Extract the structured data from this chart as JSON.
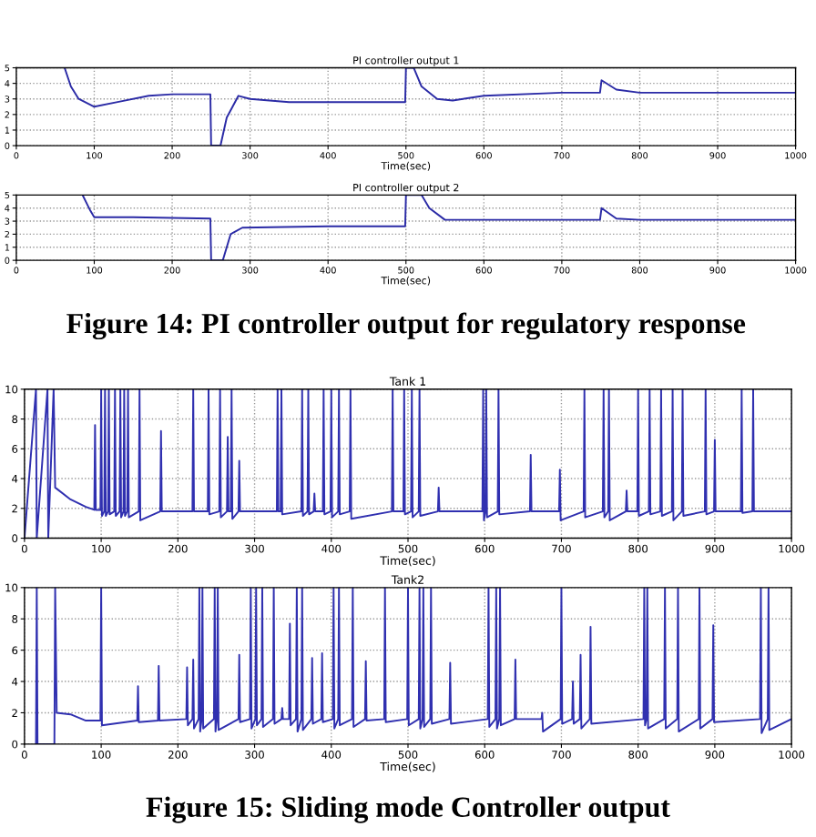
{
  "chart_data": [
    {
      "type": "line",
      "title": "PI controller output 1",
      "xlabel": "Time(sec)",
      "xlim": [
        0,
        1000
      ],
      "ylim": [
        0,
        5
      ],
      "xticks": [
        0,
        100,
        200,
        300,
        400,
        500,
        600,
        700,
        800,
        900,
        1000
      ],
      "yticks": [
        0,
        1,
        2,
        3,
        4,
        5
      ],
      "grid": true,
      "series": [
        {
          "color": "#2b2ba6",
          "x": [
            62,
            70,
            80,
            100,
            130,
            170,
            200,
            249,
            250,
            258,
            262,
            270,
            285,
            300,
            350,
            499,
            500,
            510,
            520,
            540,
            560,
            600,
            700,
            749,
            751,
            770,
            800,
            1000
          ],
          "values": [
            5,
            3.8,
            3.0,
            2.5,
            2.8,
            3.2,
            3.3,
            3.3,
            0,
            0,
            0,
            1.8,
            3.2,
            3.0,
            2.8,
            2.8,
            5,
            5,
            3.8,
            3.0,
            2.9,
            3.2,
            3.4,
            3.4,
            4.2,
            3.6,
            3.4,
            3.4
          ]
        }
      ]
    },
    {
      "type": "line",
      "title": "PI controller output 2",
      "xlabel": "Time(sec)",
      "xlim": [
        0,
        1000
      ],
      "ylim": [
        0,
        5
      ],
      "xticks": [
        0,
        100,
        200,
        300,
        400,
        500,
        600,
        700,
        800,
        900,
        1000
      ],
      "yticks": [
        0,
        1,
        2,
        3,
        4,
        5
      ],
      "grid": true,
      "annotations": [
        "Figure 14: PI controller output for regulatory response"
      ],
      "series": [
        {
          "color": "#2b2ba6",
          "x": [
            85,
            95,
            100,
            150,
            249,
            250,
            265,
            275,
            290,
            400,
            499,
            500,
            520,
            530,
            550,
            600,
            749,
            751,
            770,
            800,
            1000
          ],
          "values": [
            5,
            3.8,
            3.3,
            3.3,
            3.2,
            0,
            0,
            2.0,
            2.5,
            2.6,
            2.6,
            5,
            5,
            4.0,
            3.1,
            3.1,
            3.1,
            4.0,
            3.2,
            3.1,
            3.1
          ]
        }
      ]
    },
    {
      "type": "line",
      "title": "Tank 1",
      "xlabel": "Time(sec)",
      "xlim": [
        0,
        1000
      ],
      "ylim": [
        0,
        10
      ],
      "xticks": [
        0,
        100,
        200,
        300,
        400,
        500,
        600,
        700,
        800,
        900,
        1000
      ],
      "yticks": [
        0,
        2,
        4,
        6,
        8,
        10
      ],
      "grid": true,
      "series": [
        {
          "color": "#3030b0",
          "x": [
            0,
            15,
            16,
            30,
            31,
            38,
            40,
            60,
            80,
            91,
            92,
            93,
            99,
            100,
            101,
            104,
            105,
            106,
            109,
            110,
            111,
            117,
            118,
            119,
            124,
            125,
            126,
            129,
            130,
            131,
            134,
            135,
            136,
            149,
            150,
            151,
            177,
            178,
            179,
            219,
            220,
            221,
            239,
            240,
            241,
            254,
            255,
            256,
            264,
            265,
            266,
            269,
            270,
            271,
            279,
            280,
            281,
            329,
            330,
            331,
            334,
            335,
            336,
            361,
            362,
            363,
            369,
            370,
            371,
            377,
            378,
            379,
            389,
            390,
            391,
            399,
            400,
            401,
            409,
            410,
            411,
            424,
            425,
            426,
            479,
            480,
            481,
            494,
            495,
            496,
            504,
            505,
            506,
            514,
            515,
            516,
            539,
            540,
            541,
            597,
            598,
            599,
            601,
            602,
            603,
            617,
            618,
            619,
            659,
            660,
            661,
            697,
            698,
            699,
            729,
            730,
            731,
            754,
            755,
            756,
            761,
            762,
            763,
            784,
            785,
            786,
            799,
            800,
            801,
            814,
            815,
            816,
            829,
            830,
            831,
            844,
            845,
            846,
            857,
            858,
            859,
            887,
            888,
            889,
            899,
            900,
            901,
            934,
            935,
            936,
            949,
            950,
            951,
            1000
          ],
          "values": [
            0,
            10,
            0,
            10,
            0,
            10,
            3.4,
            2.6,
            2.1,
            1.9,
            7.6,
            1.9,
            1.9,
            10,
            1.5,
            1.8,
            10,
            1.5,
            1.8,
            10,
            1.6,
            1.8,
            10,
            1.5,
            1.8,
            10,
            1.4,
            1.8,
            10,
            1.5,
            1.8,
            10,
            1.4,
            1.8,
            10,
            1.2,
            1.8,
            7.2,
            1.8,
            1.8,
            10,
            1.8,
            1.8,
            10,
            1.6,
            1.8,
            10,
            1.4,
            1.8,
            6.8,
            1.8,
            1.8,
            10,
            1.3,
            1.8,
            5.2,
            1.8,
            1.8,
            10,
            1.8,
            1.8,
            10,
            1.6,
            1.8,
            10,
            1.5,
            1.8,
            10,
            1.6,
            1.8,
            3.0,
            1.8,
            1.8,
            10,
            1.6,
            1.8,
            10,
            1.4,
            1.8,
            10,
            1.6,
            1.8,
            10,
            1.3,
            1.8,
            10,
            1.8,
            1.8,
            10,
            1.6,
            1.8,
            10,
            1.4,
            1.8,
            10,
            1.5,
            1.8,
            3.4,
            1.8,
            1.8,
            10,
            1.2,
            1.8,
            10,
            1.4,
            1.8,
            10,
            1.6,
            1.8,
            5.6,
            1.8,
            1.8,
            4.6,
            1.2,
            1.8,
            10,
            1.4,
            1.8,
            10,
            1.4,
            1.8,
            10,
            1.2,
            1.8,
            3.2,
            1.8,
            1.8,
            10,
            1.5,
            1.8,
            10,
            1.6,
            1.8,
            10,
            1.5,
            1.8,
            10,
            1.2,
            1.8,
            10,
            1.5,
            1.8,
            10,
            1.6,
            1.8,
            6.6,
            1.8,
            1.8,
            10,
            1.7,
            1.8,
            10,
            1.8,
            1.8
          ]
        }
      ]
    },
    {
      "type": "line",
      "title": "Tank2",
      "xlabel": "Time(sec)",
      "xlim": [
        0,
        1000
      ],
      "ylim": [
        0,
        10
      ],
      "xticks": [
        0,
        100,
        200,
        300,
        400,
        500,
        600,
        700,
        800,
        900,
        1000
      ],
      "yticks": [
        0,
        2,
        4,
        6,
        8,
        10
      ],
      "grid": true,
      "annotations": [
        "Figure 15: Sliding mode Controller output"
      ],
      "series": [
        {
          "color": "#3030b0",
          "x": [
            15,
            16,
            17,
            39,
            40,
            42,
            60,
            80,
            99,
            100,
            101,
            147,
            148,
            149,
            174,
            175,
            176,
            211,
            212,
            213,
            219,
            220,
            221,
            227,
            228,
            229,
            231,
            232,
            233,
            247,
            248,
            249,
            251,
            252,
            253,
            279,
            280,
            281,
            294,
            295,
            296,
            301,
            302,
            303,
            309,
            310,
            311,
            324,
            325,
            326,
            335,
            336,
            337,
            345,
            346,
            347,
            354,
            355,
            356,
            361,
            362,
            363,
            374,
            375,
            376,
            387,
            388,
            389,
            402,
            403,
            404,
            409,
            410,
            411,
            427,
            428,
            429,
            444,
            445,
            446,
            469,
            470,
            471,
            499,
            500,
            501,
            514,
            515,
            516,
            519,
            520,
            521,
            529,
            530,
            531,
            554,
            555,
            556,
            604,
            605,
            606,
            614,
            615,
            616,
            619,
            620,
            621,
            639,
            640,
            641,
            674,
            675,
            676,
            699,
            700,
            701,
            714,
            715,
            716,
            724,
            725,
            726,
            737,
            738,
            739,
            807,
            808,
            809,
            811,
            812,
            813,
            834,
            835,
            836,
            851,
            852,
            853,
            879,
            880,
            881,
            897,
            898,
            899,
            959,
            960,
            961,
            969,
            970,
            971,
            1000
          ],
          "values": [
            0,
            10,
            0,
            0,
            10,
            2.0,
            1.9,
            1.5,
            1.5,
            10,
            1.2,
            1.5,
            3.7,
            1.4,
            1.5,
            5.0,
            1.5,
            1.6,
            4.9,
            1.2,
            1.6,
            5.4,
            1.0,
            1.6,
            10,
            0.8,
            1.6,
            10,
            1.0,
            1.6,
            10,
            0.8,
            1.6,
            10,
            0.9,
            1.6,
            5.7,
            1.4,
            1.6,
            10,
            1.0,
            1.6,
            10,
            1.2,
            1.6,
            10,
            1.1,
            1.6,
            10,
            1.3,
            1.6,
            2.3,
            1.6,
            1.6,
            7.7,
            1.2,
            1.6,
            10,
            0.8,
            1.6,
            10,
            0.9,
            1.6,
            5.5,
            1.3,
            1.6,
            5.8,
            1.4,
            1.6,
            10,
            1.0,
            1.6,
            10,
            1.2,
            1.6,
            10,
            1.1,
            1.6,
            5.3,
            1.5,
            1.6,
            10,
            1.4,
            1.6,
            10,
            1.2,
            1.6,
            10,
            1.0,
            1.6,
            10,
            1.1,
            1.6,
            10,
            1.3,
            1.6,
            5.2,
            1.3,
            1.6,
            10,
            1.1,
            1.6,
            10,
            1.0,
            1.6,
            10,
            1.2,
            1.6,
            5.4,
            1.6,
            1.6,
            2.0,
            0.8,
            1.6,
            10,
            1.3,
            1.6,
            4.0,
            1.3,
            1.6,
            5.7,
            1.0,
            1.6,
            7.5,
            1.3,
            1.6,
            10,
            1.2,
            1.6,
            10,
            1.0,
            1.6,
            10,
            1.0,
            1.6,
            10,
            0.8,
            1.6,
            10,
            1.0,
            1.6,
            7.6,
            1.4,
            1.6,
            10,
            0.7,
            1.6,
            10,
            0.9,
            1.6
          ]
        }
      ]
    }
  ]
}
